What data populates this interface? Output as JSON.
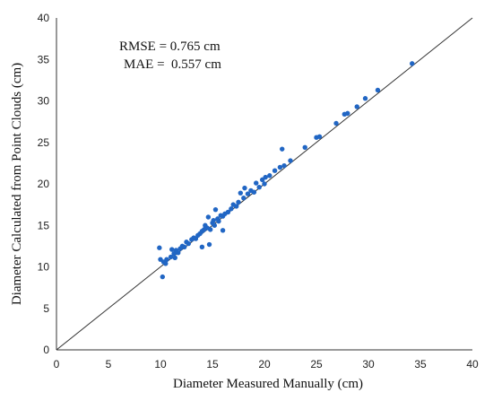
{
  "chart_data": {
    "type": "scatter",
    "title": "",
    "xlabel": "Diameter Measured Manually (cm)",
    "ylabel": "Diameter Calculated from Point Clouds (cm)",
    "xlim": [
      0,
      40
    ],
    "ylim": [
      0,
      40
    ],
    "xticks": [
      "0",
      "5",
      "10",
      "15",
      "20",
      "25",
      "30",
      "35",
      "40"
    ],
    "yticks": [
      "0",
      "5",
      "10",
      "15",
      "20",
      "25",
      "30",
      "35",
      "40"
    ],
    "grid": false,
    "reference_line": {
      "type": "identity",
      "from": [
        0,
        0
      ],
      "to": [
        40,
        40
      ],
      "color": "#333333"
    },
    "annotations": [
      "RMSE = 0.765 cm",
      "MAE =  0.557 cm"
    ],
    "marker_color": "#2166c4",
    "series": [
      {
        "points": [
          [
            9.9,
            12.3
          ],
          [
            10.0,
            10.9
          ],
          [
            10.2,
            8.8
          ],
          [
            10.3,
            10.6
          ],
          [
            10.5,
            10.4
          ],
          [
            10.6,
            10.9
          ],
          [
            11.0,
            11.2
          ],
          [
            11.1,
            12.1
          ],
          [
            11.3,
            11.6
          ],
          [
            11.4,
            11.1
          ],
          [
            11.5,
            12.0
          ],
          [
            11.7,
            11.7
          ],
          [
            11.9,
            12.2
          ],
          [
            12.1,
            12.5
          ],
          [
            12.3,
            12.4
          ],
          [
            12.5,
            13.0
          ],
          [
            12.7,
            12.8
          ],
          [
            13.0,
            13.3
          ],
          [
            13.2,
            13.5
          ],
          [
            13.4,
            13.4
          ],
          [
            13.6,
            13.8
          ],
          [
            13.8,
            14.0
          ],
          [
            14.0,
            14.3
          ],
          [
            14.0,
            12.4
          ],
          [
            14.2,
            14.5
          ],
          [
            14.3,
            15.0
          ],
          [
            14.5,
            14.7
          ],
          [
            14.6,
            16.0
          ],
          [
            14.7,
            12.7
          ],
          [
            14.8,
            14.5
          ],
          [
            15.0,
            15.3
          ],
          [
            15.1,
            15.6
          ],
          [
            15.2,
            15.0
          ],
          [
            15.3,
            16.9
          ],
          [
            15.5,
            15.8
          ],
          [
            15.6,
            15.5
          ],
          [
            15.8,
            16.2
          ],
          [
            16.0,
            14.4
          ],
          [
            16.0,
            16.1
          ],
          [
            16.2,
            16.4
          ],
          [
            16.5,
            16.6
          ],
          [
            16.8,
            17.0
          ],
          [
            17.0,
            17.5
          ],
          [
            17.3,
            17.3
          ],
          [
            17.5,
            17.8
          ],
          [
            17.7,
            18.9
          ],
          [
            18.0,
            18.3
          ],
          [
            18.1,
            19.5
          ],
          [
            18.4,
            18.8
          ],
          [
            18.7,
            19.2
          ],
          [
            19.0,
            19.0
          ],
          [
            19.2,
            20.1
          ],
          [
            19.5,
            19.6
          ],
          [
            19.8,
            20.5
          ],
          [
            20.0,
            20.0
          ],
          [
            20.1,
            20.8
          ],
          [
            20.5,
            21.0
          ],
          [
            21.0,
            21.6
          ],
          [
            21.5,
            22.0
          ],
          [
            21.7,
            24.2
          ],
          [
            21.9,
            22.2
          ],
          [
            22.5,
            22.8
          ],
          [
            23.9,
            24.4
          ],
          [
            25.0,
            25.6
          ],
          [
            25.3,
            25.7
          ],
          [
            26.9,
            27.3
          ],
          [
            27.7,
            28.4
          ],
          [
            28.0,
            28.5
          ],
          [
            28.9,
            29.3
          ],
          [
            29.7,
            30.3
          ],
          [
            30.9,
            31.3
          ],
          [
            34.2,
            34.5
          ]
        ]
      }
    ]
  }
}
